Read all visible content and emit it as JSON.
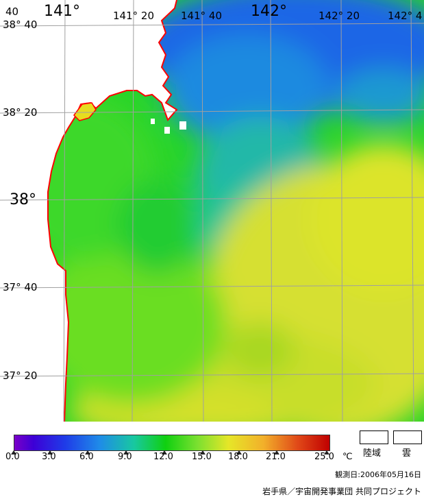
{
  "map": {
    "lat_labels": [
      "38° 40",
      "38° 20",
      "38°",
      "37° 40",
      "37° 20"
    ],
    "lon_labels": [
      "141°",
      "141° 20",
      "141° 40",
      "142°",
      "142° 20",
      "142° 4"
    ],
    "corner_label": "40",
    "coast_color": "#ff0000",
    "land_color": "#ffffff",
    "grid_color": "#a0a0a0"
  },
  "legend": {
    "scale_ticks": [
      "0.0",
      "3.0",
      "6.0",
      "9.0",
      "12.0",
      "15.0",
      "18.0",
      "21.0",
      "25.0"
    ],
    "unit": "℃",
    "land_label": "陸域",
    "cloud_label": "雲",
    "observation_date": "観測日:2006年05月16日",
    "credit": "岩手県／宇宙開発事業団 共同プロジェクト"
  }
}
